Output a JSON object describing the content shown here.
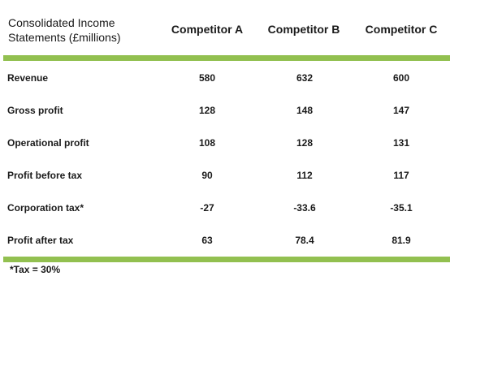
{
  "table": {
    "title_line1": "Consolidated Income",
    "title_line2": "Statements (£millions)",
    "columns": [
      "Competitor A",
      "Competitor B",
      "Competitor C"
    ],
    "rows": [
      {
        "label": "Revenue",
        "values": [
          "580",
          "632",
          "600"
        ]
      },
      {
        "label": "Gross profit",
        "values": [
          "128",
          "148",
          "147"
        ]
      },
      {
        "label": "Operational profit",
        "values": [
          "108",
          "128",
          "131"
        ]
      },
      {
        "label": "Profit before tax",
        "values": [
          "90",
          "112",
          "117"
        ]
      },
      {
        "label": "Corporation tax*",
        "values": [
          "-27",
          "-33.6",
          "-35.1"
        ]
      },
      {
        "label": "Profit after tax",
        "values": [
          "63",
          "78.4",
          "81.9"
        ]
      }
    ],
    "footnote": "*Tax = 30%"
  },
  "colors": {
    "accent_bar": "#92c050"
  }
}
